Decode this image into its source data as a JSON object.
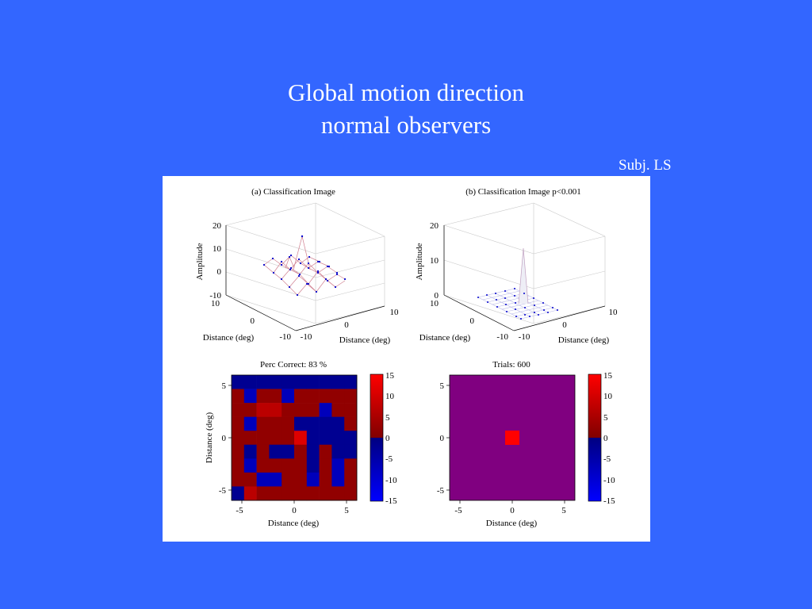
{
  "slide": {
    "title_line1": "Global motion direction",
    "title_line2": "normal observers",
    "subject": "Subj. LS"
  },
  "colors": {
    "background": "#3366FF",
    "figure_background": "#ffffff",
    "mesh_line": "#d08090",
    "mesh_point": "#0000cc",
    "cells": [
      "#0000ff",
      "#000099",
      "#990000",
      "#ff0000"
    ],
    "p_threshold_field": "#800080"
  },
  "chart_data": [
    {
      "type": "surface",
      "title": "(a)  Classification Image",
      "xlabel": "Distance (deg)",
      "ylabel": "Distance (deg)",
      "zlabel": "Amplitude",
      "x_ticks": [
        "-10",
        "0",
        "10"
      ],
      "y_ticks": [
        "-10",
        "0",
        "10"
      ],
      "z_ticks": [
        "-10",
        "0",
        "10",
        "20"
      ],
      "xlim": [
        -10,
        10
      ],
      "ylim": [
        -10,
        10
      ],
      "zlim": [
        -10,
        20
      ],
      "grid": true
    },
    {
      "type": "surface",
      "title": "(b)  Classification Image p<0.001",
      "xlabel": "Distance (deg)",
      "ylabel": "Distance (deg)",
      "zlabel": "Amplitude",
      "x_ticks": [
        "-10",
        "0",
        "10"
      ],
      "y_ticks": [
        "-10",
        "0",
        "10"
      ],
      "z_ticks": [
        "0",
        "10",
        "20"
      ],
      "xlim": [
        -10,
        10
      ],
      "ylim": [
        -10,
        10
      ],
      "zlim": [
        0,
        20
      ],
      "grid": true
    },
    {
      "type": "heatmap",
      "title": "Perc Correct: 83 %",
      "xlabel": "Distance (deg)",
      "ylabel": "Distance (deg)",
      "x_ticks": [
        "-5",
        "0",
        "5"
      ],
      "y_ticks": [
        "5",
        "0",
        "-5"
      ],
      "xlim": [
        -6,
        6
      ],
      "ylim": [
        -6,
        6
      ],
      "colorbar_ticks": [
        "15",
        "10",
        "5",
        "0",
        "-5",
        "-10",
        "-15"
      ],
      "colorbar_range": [
        -15,
        15
      ],
      "grid_values": [
        [
          -2,
          -2,
          -2,
          -2,
          -2,
          -2,
          -2,
          -2,
          -2,
          -2
        ],
        [
          2,
          -7,
          2,
          2,
          -7,
          2,
          2,
          2,
          2,
          2
        ],
        [
          2,
          2,
          7,
          7,
          2,
          2,
          2,
          -7,
          2,
          2
        ],
        [
          2,
          -7,
          2,
          2,
          2,
          -2,
          -2,
          -2,
          -2,
          2
        ],
        [
          2,
          2,
          2,
          2,
          2,
          11,
          -2,
          -2,
          -2,
          -2
        ],
        [
          2,
          -2,
          2,
          -2,
          -2,
          2,
          -2,
          2,
          -2,
          -2
        ],
        [
          2,
          -7,
          2,
          2,
          2,
          2,
          -2,
          2,
          -7,
          2
        ],
        [
          2,
          2,
          -7,
          -7,
          2,
          2,
          -7,
          2,
          -7,
          2
        ],
        [
          -2,
          7,
          2,
          2,
          2,
          2,
          2,
          2,
          2,
          2
        ]
      ]
    },
    {
      "type": "heatmap",
      "title": "Trials: 600",
      "xlabel": "Distance (deg)",
      "x_ticks": [
        "-5",
        "0",
        "5"
      ],
      "y_ticks": [
        "5",
        "0",
        "-5"
      ],
      "xlim": [
        -6,
        6
      ],
      "ylim": [
        -6,
        6
      ],
      "colorbar_ticks": [
        "15",
        "10",
        "5",
        "0",
        "-5",
        "-10",
        "-15"
      ],
      "colorbar_range": [
        -15,
        15
      ],
      "field_value": 0,
      "peak_value": 15,
      "peak_position": [
        0,
        0
      ]
    }
  ]
}
